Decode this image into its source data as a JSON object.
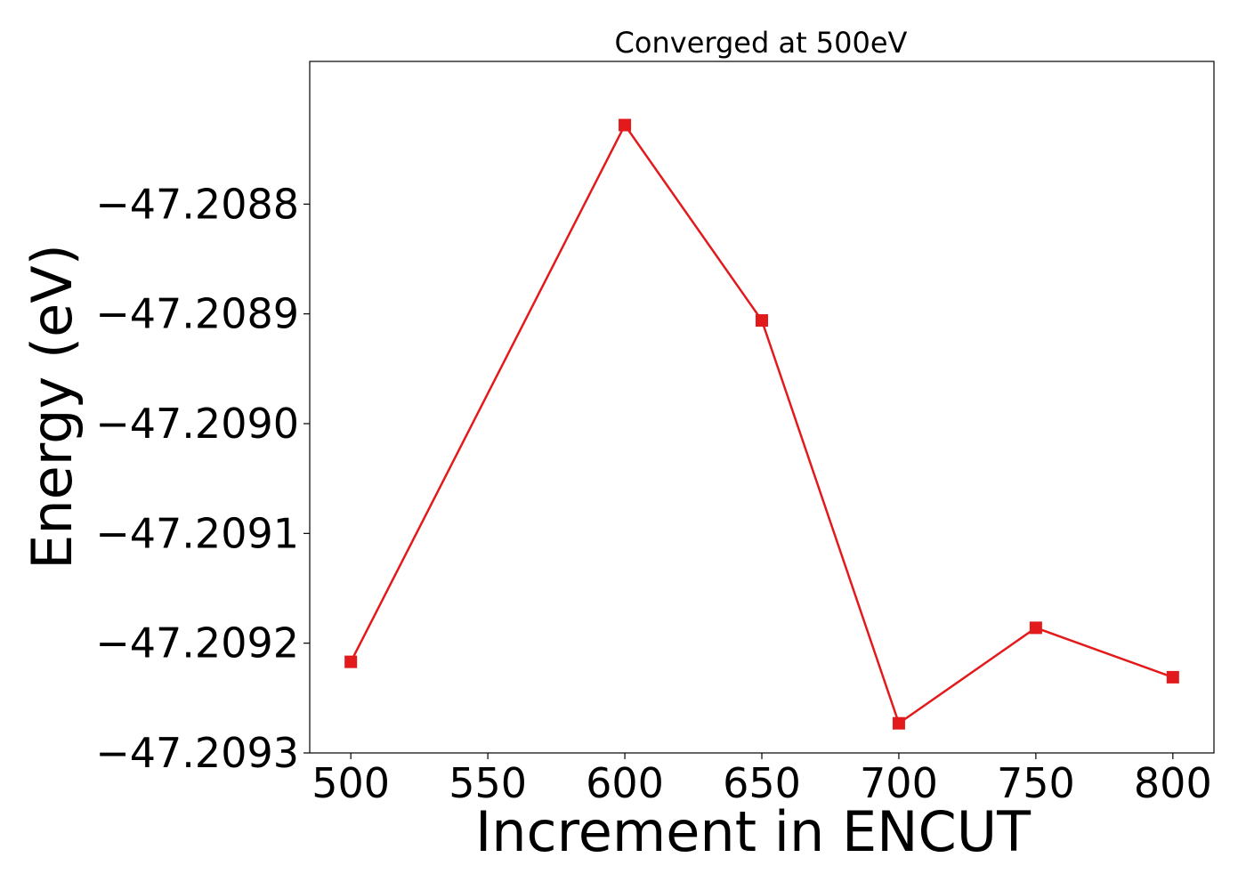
{
  "chart_data": {
    "type": "line",
    "title": "Converged at 500eV",
    "xlabel": "Increment in ENCUT",
    "ylabel": "Energy (eV)",
    "series": [
      {
        "x": [
          500,
          600,
          650,
          700,
          750,
          800
        ],
        "values": [
          -47.209217,
          -47.208728,
          -47.208906,
          -47.209273,
          -47.209186,
          -47.209231
        ],
        "color": "#e31a1c",
        "marker": "square"
      }
    ],
    "xlim": [
      485,
      815
    ],
    "ylim": [
      -47.2093,
      -47.20867
    ],
    "xticks": [
      500,
      550,
      600,
      650,
      700,
      750,
      800
    ],
    "xtick_labels": [
      "500",
      "550",
      "600",
      "650",
      "700",
      "750",
      "800"
    ],
    "yticks": [
      -47.2088,
      -47.2089,
      -47.209,
      -47.2091,
      -47.2092,
      -47.2093
    ],
    "ytick_labels": [
      "−47.2088",
      "−47.2089",
      "−47.2090",
      "−47.2091",
      "−47.2092",
      "−47.2093"
    ],
    "grid": false,
    "legend": "none"
  }
}
